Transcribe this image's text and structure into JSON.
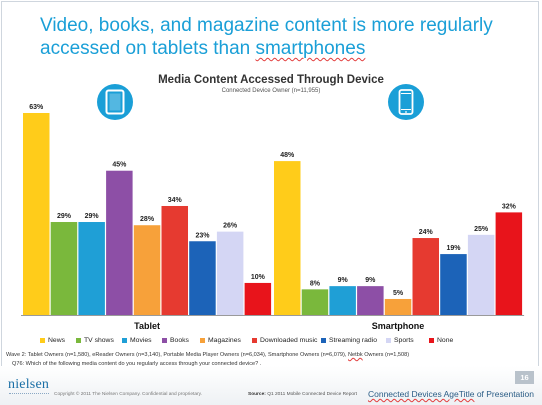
{
  "slide": {
    "headline_part1": "Video, books, and magazine content is more regularly accessed on tablets than ",
    "headline_part2": "smartphones",
    "footnote_wave_prefix": "Wave 2: Tablet Owners (n=1,580), eReader Owners (n=3,140), Portable Media Player Owners (n=6,034), Smartphone Owners (n=6,079), ",
    "footnote_wave_squiggle": "Netbk",
    "footnote_wave_suffix": " Owners (n=1,508)",
    "footnote_question": "Q76: Which of the following media content do you regularly access through your connected device? .",
    "logo": "nielsen",
    "copyright": "Copyright © 2011 The Nielsen Company. Confidential and proprietary.",
    "source_label": "Source:",
    "source_text": "Q1 2011 Mobile Connected Device Report",
    "page_number": "16",
    "presentation_title_squiggle": "Connected Devices AgeTitle",
    "presentation_title_rest": " of Presentation"
  },
  "chart_data": {
    "type": "bar",
    "title": "Media Content Accessed Through Device",
    "subtitle": "Connected Device Owner (n=11,955)",
    "ylim": [
      0,
      63
    ],
    "categories": [
      "Tablet",
      "Smartphone"
    ],
    "series": [
      {
        "name": "News",
        "color": "#ffcc1a",
        "values": [
          63,
          48
        ]
      },
      {
        "name": "TV shows",
        "color": "#7ab83c",
        "values": [
          29,
          8
        ]
      },
      {
        "name": "Movies",
        "color": "#1f9fd6",
        "values": [
          29,
          9
        ]
      },
      {
        "name": "Books",
        "color": "#8d4fa6",
        "values": [
          45,
          9
        ]
      },
      {
        "name": "Magazines",
        "color": "#f7a13a",
        "values": [
          28,
          5
        ]
      },
      {
        "name": "Downloaded music",
        "color": "#e63a30",
        "values": [
          34,
          24
        ]
      },
      {
        "name": "Streaming radio",
        "color": "#1c63b8",
        "values": [
          23,
          19
        ]
      },
      {
        "name": "Sports",
        "color": "#d4d6f4",
        "values": [
          26,
          25
        ]
      },
      {
        "name": "None",
        "color": "#e8141b",
        "values": [
          10,
          32
        ]
      }
    ],
    "value_suffix": "%",
    "legend_position": "bottom",
    "grid": false
  },
  "icons": {
    "tablet": "tablet-icon",
    "smartphone": "smartphone-icon",
    "accent": "#1a9fd7"
  }
}
